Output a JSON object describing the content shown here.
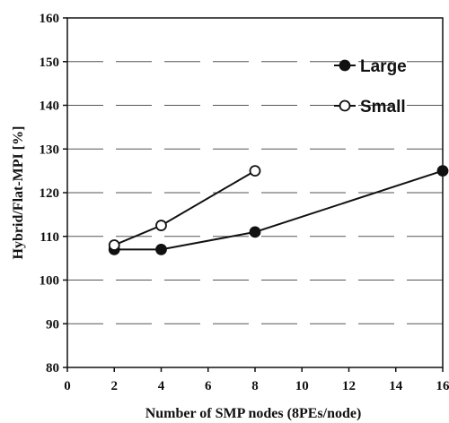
{
  "chart_data": {
    "type": "line",
    "xlabel": "Number of SMP nodes (8PEs/node)",
    "ylabel": "Hybrid/Flat-MPI [%]",
    "xlim": [
      0,
      16
    ],
    "ylim": [
      80,
      160
    ],
    "xticks": [
      "0",
      "2",
      "4",
      "6",
      "8",
      "10",
      "12",
      "14",
      "16"
    ],
    "yticks": [
      "80",
      "90",
      "100",
      "110",
      "120",
      "130",
      "140",
      "150",
      "160"
    ],
    "grid": "horizontal",
    "legend_position": "top-right",
    "series": [
      {
        "name": "Large",
        "marker": "filled-circle",
        "x": [
          2,
          4,
          8,
          16
        ],
        "values": [
          107,
          107,
          111,
          125
        ]
      },
      {
        "name": "Small",
        "marker": "open-circle",
        "x": [
          2,
          4,
          8
        ],
        "values": [
          108,
          112.5,
          125
        ]
      }
    ]
  }
}
